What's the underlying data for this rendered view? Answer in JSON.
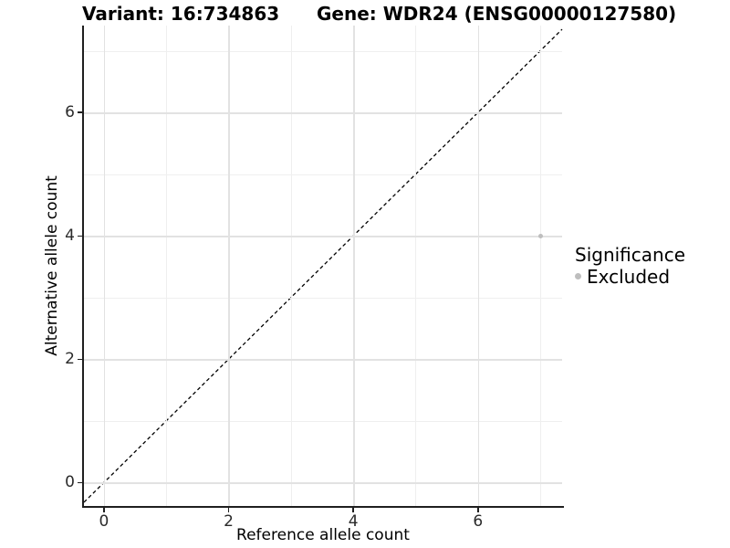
{
  "chart_data": {
    "type": "scatter",
    "titles": {
      "left": "Variant: 16:734863",
      "right": "Gene: WDR24 (ENSG00000127580)"
    },
    "xlabel": "Reference allele count",
    "ylabel": "Alternative allele count",
    "xlim": [
      -0.32,
      7.35
    ],
    "ylim": [
      -0.38,
      7.41
    ],
    "x_major_ticks": [
      0,
      2,
      4,
      6
    ],
    "x_minor_ticks": [
      1,
      3,
      5,
      7
    ],
    "y_major_ticks": [
      0,
      2,
      4,
      6
    ],
    "y_minor_ticks": [
      1,
      3,
      5,
      7
    ],
    "x_tick_labels": [
      "0",
      "2",
      "4",
      "6"
    ],
    "y_tick_labels": [
      "0",
      "2",
      "4",
      "6"
    ],
    "grid": {
      "major_color": "#e2e2e2",
      "minor_color": "#efefef",
      "shown": true
    },
    "reference_line": {
      "slope": 1,
      "intercept": 0,
      "style": "dashed",
      "color": "#000000"
    },
    "series": [
      {
        "name": "Excluded",
        "color": "#bebebe",
        "points": [
          {
            "x": 7,
            "y": 4
          }
        ]
      }
    ],
    "legend": {
      "title": "Significance",
      "position": "right",
      "entries": [
        {
          "label": "Excluded",
          "color": "#bebebe"
        }
      ]
    },
    "axis_color": "#1f1f1f",
    "background": "#ffffff"
  }
}
